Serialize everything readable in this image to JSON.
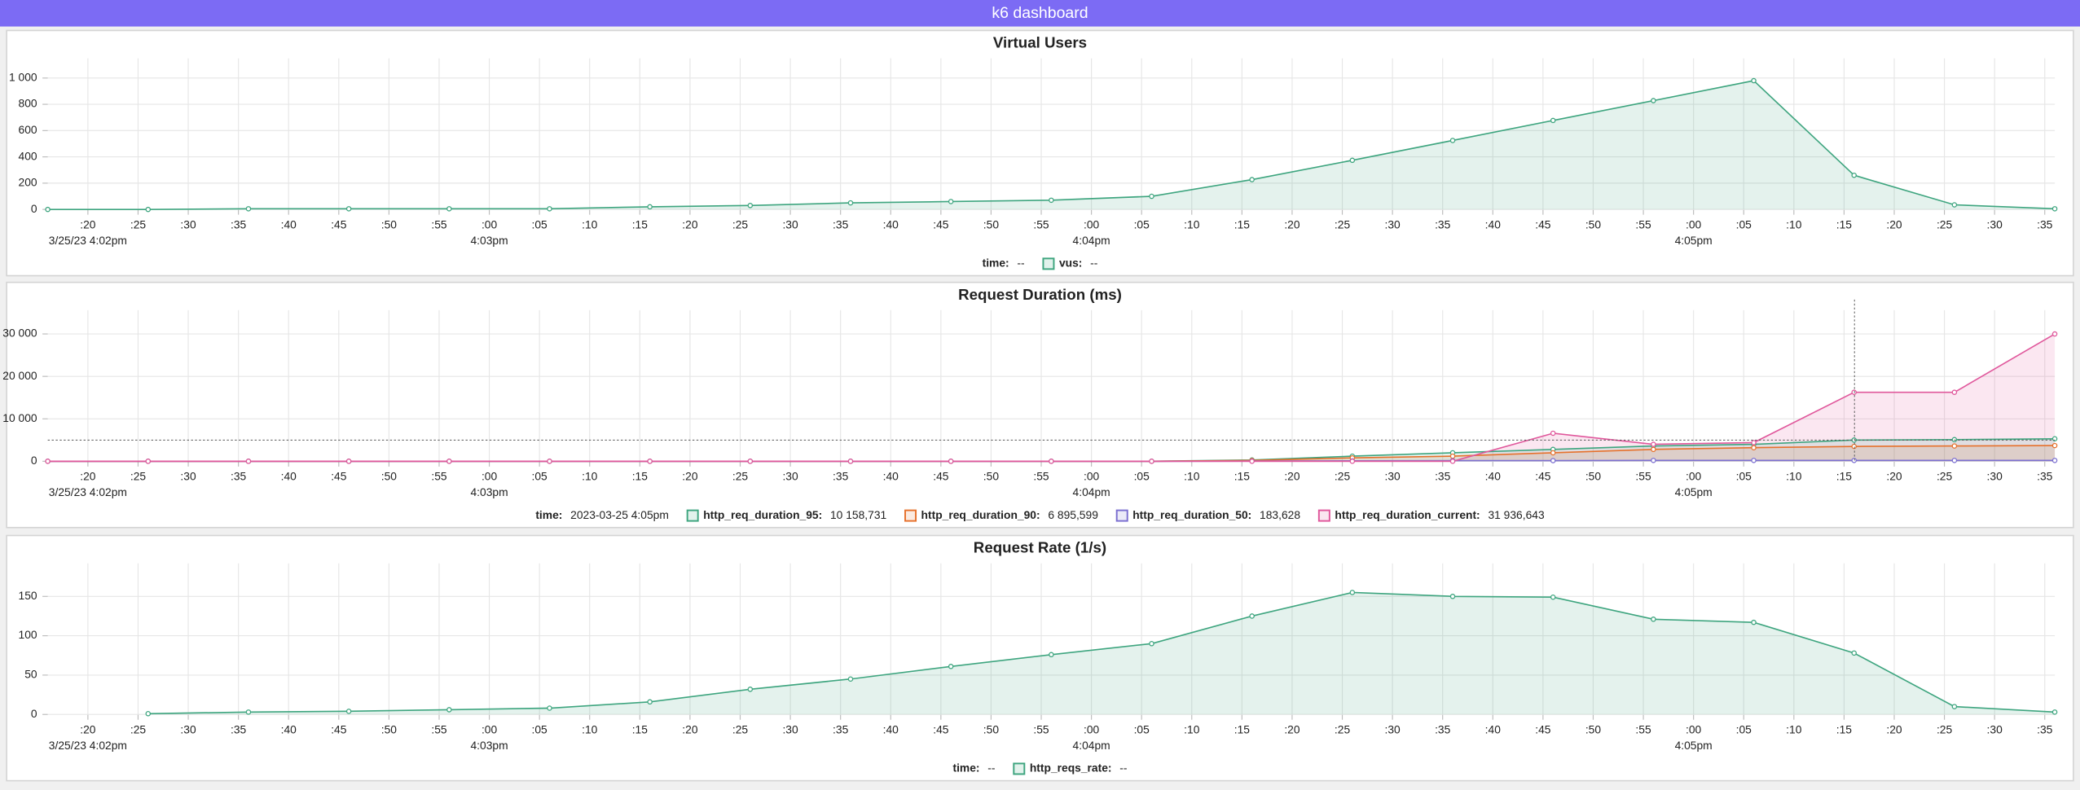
{
  "header": {
    "title": "k6 dashboard"
  },
  "chart_data": [
    {
      "type": "line",
      "title": "Virtual Users",
      "fill": true,
      "markers": true,
      "grid": true,
      "x": [
        "16:02:16",
        "16:02:26",
        "16:02:36",
        "16:02:46",
        "16:02:56",
        "16:03:06",
        "16:03:16",
        "16:03:26",
        "16:03:36",
        "16:03:46",
        "16:03:56",
        "16:04:06",
        "16:04:16",
        "16:04:26",
        "16:04:36",
        "16:04:46",
        "16:04:56",
        "16:05:06",
        "16:05:16",
        "16:05:26",
        "16:05:36"
      ],
      "xlim": [
        "16:02:16",
        "16:05:36"
      ],
      "xticks": [
        {
          "value": "16:02:20",
          "label": ":20"
        },
        {
          "value": "16:02:25",
          "label": ":25"
        },
        {
          "value": "16:02:30",
          "label": ":30"
        },
        {
          "value": "16:02:35",
          "label": ":35"
        },
        {
          "value": "16:02:40",
          "label": ":40"
        },
        {
          "value": "16:02:45",
          "label": ":45"
        },
        {
          "value": "16:02:50",
          "label": ":50"
        },
        {
          "value": "16:02:55",
          "label": ":55"
        },
        {
          "value": "16:03:00",
          "label": ":00"
        },
        {
          "value": "16:03:05",
          "label": ":05"
        },
        {
          "value": "16:03:10",
          "label": ":10"
        },
        {
          "value": "16:03:15",
          "label": ":15"
        },
        {
          "value": "16:03:20",
          "label": ":20"
        },
        {
          "value": "16:03:25",
          "label": ":25"
        },
        {
          "value": "16:03:30",
          "label": ":30"
        },
        {
          "value": "16:03:35",
          "label": ":35"
        },
        {
          "value": "16:03:40",
          "label": ":40"
        },
        {
          "value": "16:03:45",
          "label": ":45"
        },
        {
          "value": "16:03:50",
          "label": ":50"
        },
        {
          "value": "16:03:55",
          "label": ":55"
        },
        {
          "value": "16:04:00",
          "label": ":00"
        },
        {
          "value": "16:04:05",
          "label": ":05"
        },
        {
          "value": "16:04:10",
          "label": ":10"
        },
        {
          "value": "16:04:15",
          "label": ":15"
        },
        {
          "value": "16:04:20",
          "label": ":20"
        },
        {
          "value": "16:04:25",
          "label": ":25"
        },
        {
          "value": "16:04:30",
          "label": ":30"
        },
        {
          "value": "16:04:35",
          "label": ":35"
        },
        {
          "value": "16:04:40",
          "label": ":40"
        },
        {
          "value": "16:04:45",
          "label": ":45"
        },
        {
          "value": "16:04:50",
          "label": ":50"
        },
        {
          "value": "16:04:55",
          "label": ":55"
        },
        {
          "value": "16:05:00",
          "label": ":00"
        },
        {
          "value": "16:05:05",
          "label": ":05"
        },
        {
          "value": "16:05:10",
          "label": ":10"
        },
        {
          "value": "16:05:15",
          "label": ":15"
        },
        {
          "value": "16:05:20",
          "label": ":20"
        },
        {
          "value": "16:05:25",
          "label": ":25"
        },
        {
          "value": "16:05:30",
          "label": ":30"
        },
        {
          "value": "16:05:35",
          "label": ":35"
        }
      ],
      "xticks_secondary": [
        {
          "value": "16:02:20",
          "label": "3/25/23 4:02pm"
        },
        {
          "value": "16:03:00",
          "label": "4:03pm"
        },
        {
          "value": "16:04:00",
          "label": "4:04pm"
        },
        {
          "value": "16:05:00",
          "label": "4:05pm"
        }
      ],
      "ylim": [
        0,
        1150
      ],
      "yticks": [
        0,
        200,
        400,
        600,
        800,
        {
          "value": 1000,
          "label": "1 000"
        }
      ],
      "legend": {
        "time_label": "time:",
        "time_value": "--"
      },
      "series": [
        {
          "name": "vus:",
          "color": "#3ea57f",
          "legend_value": "--",
          "values": [
            0,
            0,
            5,
            5,
            5,
            5,
            20,
            30,
            50,
            60,
            70,
            100,
            227,
            374,
            525,
            677,
            828,
            980,
            260,
            35,
            5
          ]
        }
      ]
    },
    {
      "type": "line",
      "title": "Request Duration (ms)",
      "fill": true,
      "markers": true,
      "grid": true,
      "x": [
        "16:02:16",
        "16:02:26",
        "16:02:36",
        "16:02:46",
        "16:02:56",
        "16:03:06",
        "16:03:16",
        "16:03:26",
        "16:03:36",
        "16:03:46",
        "16:03:56",
        "16:04:06",
        "16:04:16",
        "16:04:26",
        "16:04:36",
        "16:04:46",
        "16:04:56",
        "16:05:06",
        "16:05:16",
        "16:05:26",
        "16:05:36"
      ],
      "xlim": [
        "16:02:16",
        "16:05:36"
      ],
      "xticks": [
        {
          "value": "16:02:20",
          "label": ":20"
        },
        {
          "value": "16:02:25",
          "label": ":25"
        },
        {
          "value": "16:02:30",
          "label": ":30"
        },
        {
          "value": "16:02:35",
          "label": ":35"
        },
        {
          "value": "16:02:40",
          "label": ":40"
        },
        {
          "value": "16:02:45",
          "label": ":45"
        },
        {
          "value": "16:02:50",
          "label": ":50"
        },
        {
          "value": "16:02:55",
          "label": ":55"
        },
        {
          "value": "16:03:00",
          "label": ":00"
        },
        {
          "value": "16:03:05",
          "label": ":05"
        },
        {
          "value": "16:03:10",
          "label": ":10"
        },
        {
          "value": "16:03:15",
          "label": ":15"
        },
        {
          "value": "16:03:20",
          "label": ":20"
        },
        {
          "value": "16:03:25",
          "label": ":25"
        },
        {
          "value": "16:03:30",
          "label": ":30"
        },
        {
          "value": "16:03:35",
          "label": ":35"
        },
        {
          "value": "16:03:40",
          "label": ":40"
        },
        {
          "value": "16:03:45",
          "label": ":45"
        },
        {
          "value": "16:03:50",
          "label": ":50"
        },
        {
          "value": "16:03:55",
          "label": ":55"
        },
        {
          "value": "16:04:00",
          "label": ":00"
        },
        {
          "value": "16:04:05",
          "label": ":05"
        },
        {
          "value": "16:04:10",
          "label": ":10"
        },
        {
          "value": "16:04:15",
          "label": ":15"
        },
        {
          "value": "16:04:20",
          "label": ":20"
        },
        {
          "value": "16:04:25",
          "label": ":25"
        },
        {
          "value": "16:04:30",
          "label": ":30"
        },
        {
          "value": "16:04:35",
          "label": ":35"
        },
        {
          "value": "16:04:40",
          "label": ":40"
        },
        {
          "value": "16:04:45",
          "label": ":45"
        },
        {
          "value": "16:04:50",
          "label": ":50"
        },
        {
          "value": "16:04:55",
          "label": ":55"
        },
        {
          "value": "16:05:00",
          "label": ":00"
        },
        {
          "value": "16:05:05",
          "label": ":05"
        },
        {
          "value": "16:05:10",
          "label": ":10"
        },
        {
          "value": "16:05:15",
          "label": ":15"
        },
        {
          "value": "16:05:20",
          "label": ":20"
        },
        {
          "value": "16:05:25",
          "label": ":25"
        },
        {
          "value": "16:05:30",
          "label": ":30"
        },
        {
          "value": "16:05:35",
          "label": ":35"
        }
      ],
      "xticks_secondary": [
        {
          "value": "16:02:20",
          "label": "3/25/23 4:02pm"
        },
        {
          "value": "16:03:00",
          "label": "4:03pm"
        },
        {
          "value": "16:04:00",
          "label": "4:04pm"
        },
        {
          "value": "16:05:00",
          "label": "4:05pm"
        }
      ],
      "ylim": [
        0,
        35600
      ],
      "yticks": [
        0,
        {
          "value": 10000,
          "label": "10 000"
        },
        {
          "value": 20000,
          "label": "20 000"
        },
        {
          "value": 30000,
          "label": "30 000"
        }
      ],
      "legend": {
        "time_label": "time:",
        "time_value": "2023-03-25 4:05pm"
      },
      "series": [
        {
          "name": "http_req_duration_95:",
          "color": "#3ea57f",
          "legend_value": "10 158,731",
          "values": [
            0,
            0,
            0,
            0,
            0,
            0,
            0,
            0,
            0,
            0,
            0,
            0,
            300,
            1200,
            2000,
            2800,
            3600,
            4000,
            5000,
            5100,
            5300
          ]
        },
        {
          "name": "http_req_duration_90:",
          "color": "#e6712c",
          "legend_value": "6 895,599",
          "values": [
            0,
            0,
            0,
            0,
            0,
            0,
            0,
            0,
            0,
            0,
            0,
            0,
            200,
            800,
            1200,
            2000,
            2800,
            3200,
            3500,
            3600,
            3700
          ]
        },
        {
          "name": "http_req_duration_50:",
          "color": "#7b6fd0",
          "legend_value": "183,628",
          "values": [
            0,
            0,
            0,
            0,
            0,
            0,
            0,
            0,
            0,
            0,
            0,
            0,
            50,
            100,
            150,
            150,
            200,
            200,
            200,
            200,
            200
          ]
        },
        {
          "name": "http_req_duration_current:",
          "color": "#e0589c",
          "legend_value": "31 936,643",
          "values": [
            0,
            0,
            0,
            0,
            0,
            0,
            0,
            0,
            0,
            0,
            0,
            0,
            0,
            0,
            0,
            6600,
            4000,
            4400,
            16250,
            16250,
            30000
          ]
        }
      ]
    },
    {
      "type": "line",
      "title": "Request Rate (1/s)",
      "fill": true,
      "markers": true,
      "grid": true,
      "x": [
        "16:02:16",
        "16:02:26",
        "16:02:36",
        "16:02:46",
        "16:02:56",
        "16:03:06",
        "16:03:16",
        "16:03:26",
        "16:03:36",
        "16:03:46",
        "16:03:56",
        "16:04:06",
        "16:04:16",
        "16:04:26",
        "16:04:36",
        "16:04:46",
        "16:04:56",
        "16:05:06",
        "16:05:16",
        "16:05:26",
        "16:05:36"
      ],
      "xlim": [
        "16:02:16",
        "16:05:36"
      ],
      "xticks": [
        {
          "value": "16:02:20",
          "label": ":20"
        },
        {
          "value": "16:02:25",
          "label": ":25"
        },
        {
          "value": "16:02:30",
          "label": ":30"
        },
        {
          "value": "16:02:35",
          "label": ":35"
        },
        {
          "value": "16:02:40",
          "label": ":40"
        },
        {
          "value": "16:02:45",
          "label": ":45"
        },
        {
          "value": "16:02:50",
          "label": ":50"
        },
        {
          "value": "16:02:55",
          "label": ":55"
        },
        {
          "value": "16:03:00",
          "label": ":00"
        },
        {
          "value": "16:03:05",
          "label": ":05"
        },
        {
          "value": "16:03:10",
          "label": ":10"
        },
        {
          "value": "16:03:15",
          "label": ":15"
        },
        {
          "value": "16:03:20",
          "label": ":20"
        },
        {
          "value": "16:03:25",
          "label": ":25"
        },
        {
          "value": "16:03:30",
          "label": ":30"
        },
        {
          "value": "16:03:35",
          "label": ":35"
        },
        {
          "value": "16:03:40",
          "label": ":40"
        },
        {
          "value": "16:03:45",
          "label": ":45"
        },
        {
          "value": "16:03:50",
          "label": ":50"
        },
        {
          "value": "16:03:55",
          "label": ":55"
        },
        {
          "value": "16:04:00",
          "label": ":00"
        },
        {
          "value": "16:04:05",
          "label": ":05"
        },
        {
          "value": "16:04:10",
          "label": ":10"
        },
        {
          "value": "16:04:15",
          "label": ":15"
        },
        {
          "value": "16:04:20",
          "label": ":20"
        },
        {
          "value": "16:04:25",
          "label": ":25"
        },
        {
          "value": "16:04:30",
          "label": ":30"
        },
        {
          "value": "16:04:35",
          "label": ":35"
        },
        {
          "value": "16:04:40",
          "label": ":40"
        },
        {
          "value": "16:04:45",
          "label": ":45"
        },
        {
          "value": "16:04:50",
          "label": ":50"
        },
        {
          "value": "16:04:55",
          "label": ":55"
        },
        {
          "value": "16:05:00",
          "label": ":00"
        },
        {
          "value": "16:05:05",
          "label": ":05"
        },
        {
          "value": "16:05:10",
          "label": ":10"
        },
        {
          "value": "16:05:15",
          "label": ":15"
        },
        {
          "value": "16:05:20",
          "label": ":20"
        },
        {
          "value": "16:05:25",
          "label": ":25"
        },
        {
          "value": "16:05:30",
          "label": ":30"
        },
        {
          "value": "16:05:35",
          "label": ":35"
        }
      ],
      "xticks_secondary": [
        {
          "value": "16:02:20",
          "label": "3/25/23 4:02pm"
        },
        {
          "value": "16:03:00",
          "label": "4:03pm"
        },
        {
          "value": "16:04:00",
          "label": "4:04pm"
        },
        {
          "value": "16:05:00",
          "label": "4:05pm"
        }
      ],
      "ylim": [
        0,
        192
      ],
      "yticks": [
        0,
        50,
        100,
        150
      ],
      "legend": {
        "time_label": "time:",
        "time_value": "--"
      },
      "series": [
        {
          "name": "http_reqs_rate:",
          "color": "#3ea57f",
          "legend_value": "--",
          "values": [
            null,
            1,
            3,
            4,
            6,
            8,
            16,
            32,
            45,
            61,
            76,
            90,
            125,
            155,
            150,
            149,
            121,
            117,
            78,
            10,
            3
          ]
        }
      ]
    }
  ]
}
